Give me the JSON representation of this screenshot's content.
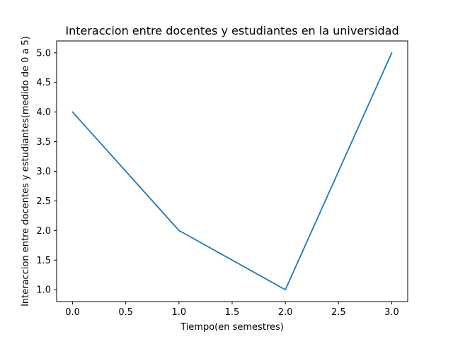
{
  "chart_data": {
    "type": "line",
    "title": "Interaccion entre docentes y estudiantes en la universidad",
    "xlabel": "Tiempo(en semestres)",
    "ylabel": "Interaccion entre docentes y estudiantes(medido de 0 a 5)",
    "x": [
      0,
      1,
      2,
      3
    ],
    "series": [
      {
        "values": [
          4,
          2,
          1,
          5
        ],
        "color": "#1f77b4"
      }
    ],
    "xlim": [
      -0.15,
      3.15
    ],
    "ylim": [
      0.8,
      5.2
    ],
    "x_ticks": [
      0.0,
      0.5,
      1.0,
      1.5,
      2.0,
      2.5,
      3.0
    ],
    "x_tick_labels": [
      "0.0",
      "0.5",
      "1.0",
      "1.5",
      "2.0",
      "2.5",
      "3.0"
    ],
    "y_ticks": [
      1.0,
      1.5,
      2.0,
      2.5,
      3.0,
      3.5,
      4.0,
      4.5,
      5.0
    ],
    "y_tick_labels": [
      "1.0",
      "1.5",
      "2.0",
      "2.5",
      "3.0",
      "3.5",
      "4.0",
      "4.5",
      "5.0"
    ],
    "grid": false,
    "legend": "none"
  }
}
